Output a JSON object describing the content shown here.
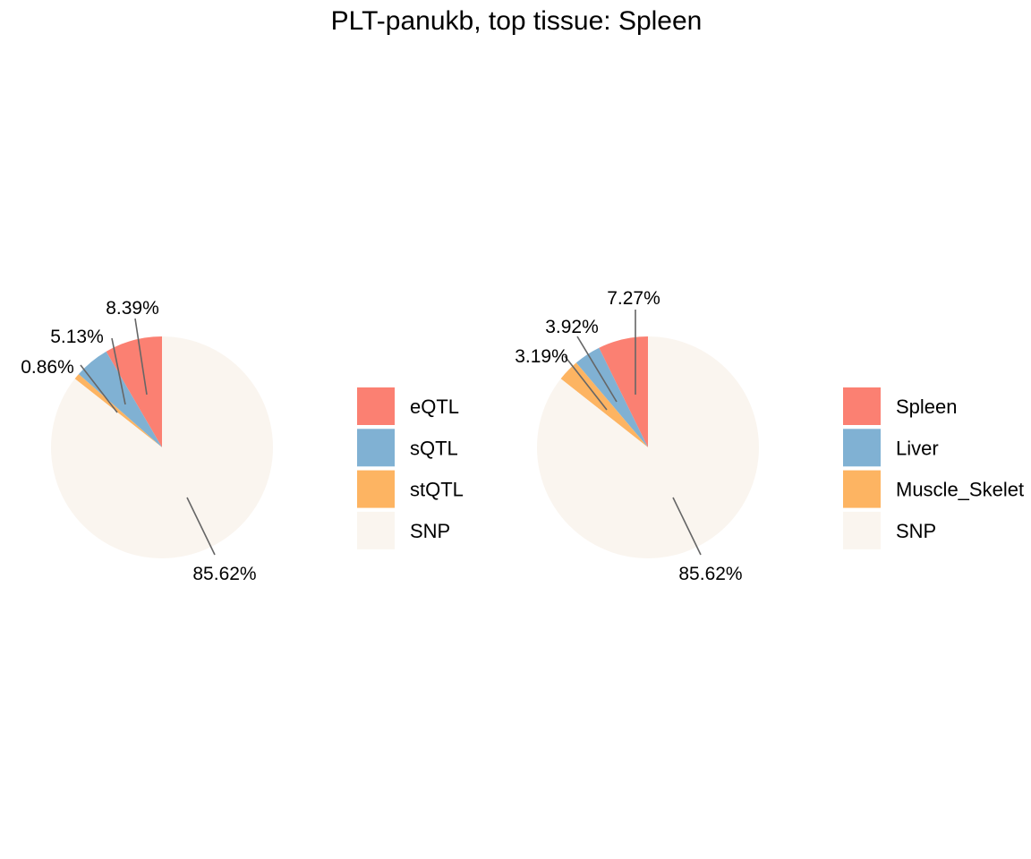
{
  "title": "PLT-panukb, top tissue: Spleen",
  "chart_data": [
    {
      "type": "pie",
      "title": "",
      "slices": [
        {
          "label": "eQTL",
          "value": 8.39,
          "display": "8.39%",
          "color": "#FB8072"
        },
        {
          "label": "sQTL",
          "value": 5.13,
          "display": "5.13%",
          "color": "#80B1D3"
        },
        {
          "label": "stQTL",
          "value": 0.86,
          "display": "0.86%",
          "color": "#FDB462"
        },
        {
          "label": "SNP",
          "value": 85.62,
          "display": "85.62%",
          "color": "#FAF5EF"
        }
      ],
      "legend_placement": "right",
      "direction": "counterclockwise",
      "start": "top"
    },
    {
      "type": "pie",
      "title": "",
      "slices": [
        {
          "label": "Spleen",
          "value": 7.27,
          "display": "7.27%",
          "color": "#FB8072"
        },
        {
          "label": "Liver",
          "value": 3.92,
          "display": "3.92%",
          "color": "#80B1D3"
        },
        {
          "label": "Muscle_Skelet",
          "value": 3.19,
          "display": "3.19%",
          "color": "#FDB462"
        },
        {
          "label": "SNP",
          "value": 85.62,
          "display": "85.62%",
          "color": "#FAF5EF"
        }
      ],
      "legend_placement": "right",
      "direction": "counterclockwise",
      "start": "top"
    }
  ]
}
